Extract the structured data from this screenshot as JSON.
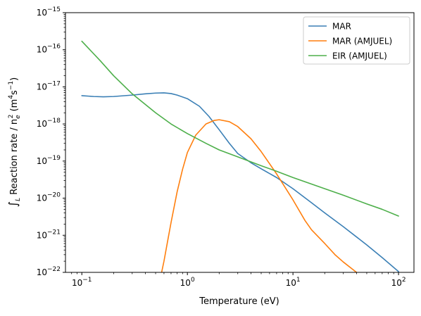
{
  "chart_data": {
    "type": "line",
    "title": "",
    "xlabel": "Temperature (eV)",
    "ylabel": {
      "integral": "∫",
      "subscript": "L",
      "text": " Reaction rate / n",
      "n_sub": "e",
      "n_sup": "2",
      "units_open": " (m",
      "units_sup1": "4",
      "units_mid": "s",
      "units_sup2": "−1",
      "units_close": ")"
    },
    "xscale": "log",
    "yscale": "log",
    "xlim": [
      0.07,
      140
    ],
    "ylim": [
      1e-22,
      1e-15
    ],
    "legend_placement": "top-right",
    "grid": false,
    "x_ticks": [
      {
        "value": 0.1,
        "base": "10",
        "exp": "−1"
      },
      {
        "value": 1,
        "base": "10",
        "exp": "0"
      },
      {
        "value": 10,
        "base": "10",
        "exp": "1"
      },
      {
        "value": 100,
        "base": "10",
        "exp": "2"
      }
    ],
    "y_ticks": [
      {
        "value": 1e-22,
        "base": "10",
        "exp": "−22"
      },
      {
        "value": 1e-21,
        "base": "10",
        "exp": "−21"
      },
      {
        "value": 1e-20,
        "base": "10",
        "exp": "−20"
      },
      {
        "value": 1e-19,
        "base": "10",
        "exp": "−19"
      },
      {
        "value": 1e-18,
        "base": "10",
        "exp": "−18"
      },
      {
        "value": 1e-17,
        "base": "10",
        "exp": "−17"
      },
      {
        "value": 1e-16,
        "base": "10",
        "exp": "−16"
      },
      {
        "value": 1e-15,
        "base": "10",
        "exp": "−15"
      }
    ],
    "series": [
      {
        "name": "MAR",
        "color": "#3a7fb5",
        "points": [
          [
            0.1,
            5.8e-18
          ],
          [
            0.13,
            5.5e-18
          ],
          [
            0.16,
            5.4e-18
          ],
          [
            0.2,
            5.5e-18
          ],
          [
            0.3,
            6e-18
          ],
          [
            0.4,
            6.5e-18
          ],
          [
            0.5,
            6.8e-18
          ],
          [
            0.6,
            6.9e-18
          ],
          [
            0.7,
            6.6e-18
          ],
          [
            0.8,
            6e-18
          ],
          [
            1.0,
            4.8e-18
          ],
          [
            1.3,
            3e-18
          ],
          [
            1.6,
            1.6e-18
          ],
          [
            2.0,
            7e-19
          ],
          [
            2.5,
            3e-19
          ],
          [
            3.0,
            1.6e-19
          ],
          [
            4.0,
            9e-20
          ],
          [
            5.0,
            6.2e-20
          ],
          [
            7.0,
            3.6e-20
          ],
          [
            10.0,
            1.8e-20
          ],
          [
            15.0,
            7.5e-21
          ],
          [
            20.0,
            4e-21
          ],
          [
            30.0,
            1.7e-21
          ],
          [
            50.0,
            5.5e-22
          ],
          [
            70.0,
            2.5e-22
          ],
          [
            100.0,
            1.05e-22
          ]
        ]
      },
      {
        "name": "MAR (AMJUEL)",
        "color": "#ff7f0e",
        "points": [
          [
            0.57,
            1e-22
          ],
          [
            0.6,
            2e-22
          ],
          [
            0.65,
            7e-22
          ],
          [
            0.7,
            2.2e-21
          ],
          [
            0.8,
            1.5e-20
          ],
          [
            0.9,
            6e-20
          ],
          [
            1.0,
            1.7e-19
          ],
          [
            1.2,
            5e-19
          ],
          [
            1.5,
            1e-18
          ],
          [
            1.8,
            1.25e-18
          ],
          [
            2.0,
            1.3e-18
          ],
          [
            2.5,
            1.15e-18
          ],
          [
            3.0,
            8.5e-19
          ],
          [
            4.0,
            4e-19
          ],
          [
            5.0,
            1.8e-19
          ],
          [
            7.0,
            4.5e-20
          ],
          [
            10.0,
            9e-21
          ],
          [
            13.0,
            2.5e-21
          ],
          [
            15.0,
            1.4e-21
          ],
          [
            20.0,
            6e-22
          ],
          [
            25.0,
            3e-22
          ],
          [
            30.0,
            1.9e-22
          ],
          [
            40.0,
            1e-22
          ]
        ]
      },
      {
        "name": "EIR (AMJUEL)",
        "color": "#4daf4a",
        "points": [
          [
            0.1,
            1.7e-16
          ],
          [
            0.15,
            5e-17
          ],
          [
            0.2,
            2e-17
          ],
          [
            0.3,
            6.5e-18
          ],
          [
            0.5,
            2e-18
          ],
          [
            0.7,
            1e-18
          ],
          [
            1.0,
            5.5e-19
          ],
          [
            1.5,
            3e-19
          ],
          [
            2.0,
            2e-19
          ],
          [
            3.0,
            1.3e-19
          ],
          [
            5.0,
            7.5e-20
          ],
          [
            7.0,
            5.3e-20
          ],
          [
            10.0,
            3.6e-20
          ],
          [
            20.0,
            1.8e-20
          ],
          [
            30.0,
            1.2e-20
          ],
          [
            50.0,
            7e-21
          ],
          [
            70.0,
            5e-21
          ],
          [
            100.0,
            3.3e-21
          ]
        ]
      }
    ]
  }
}
